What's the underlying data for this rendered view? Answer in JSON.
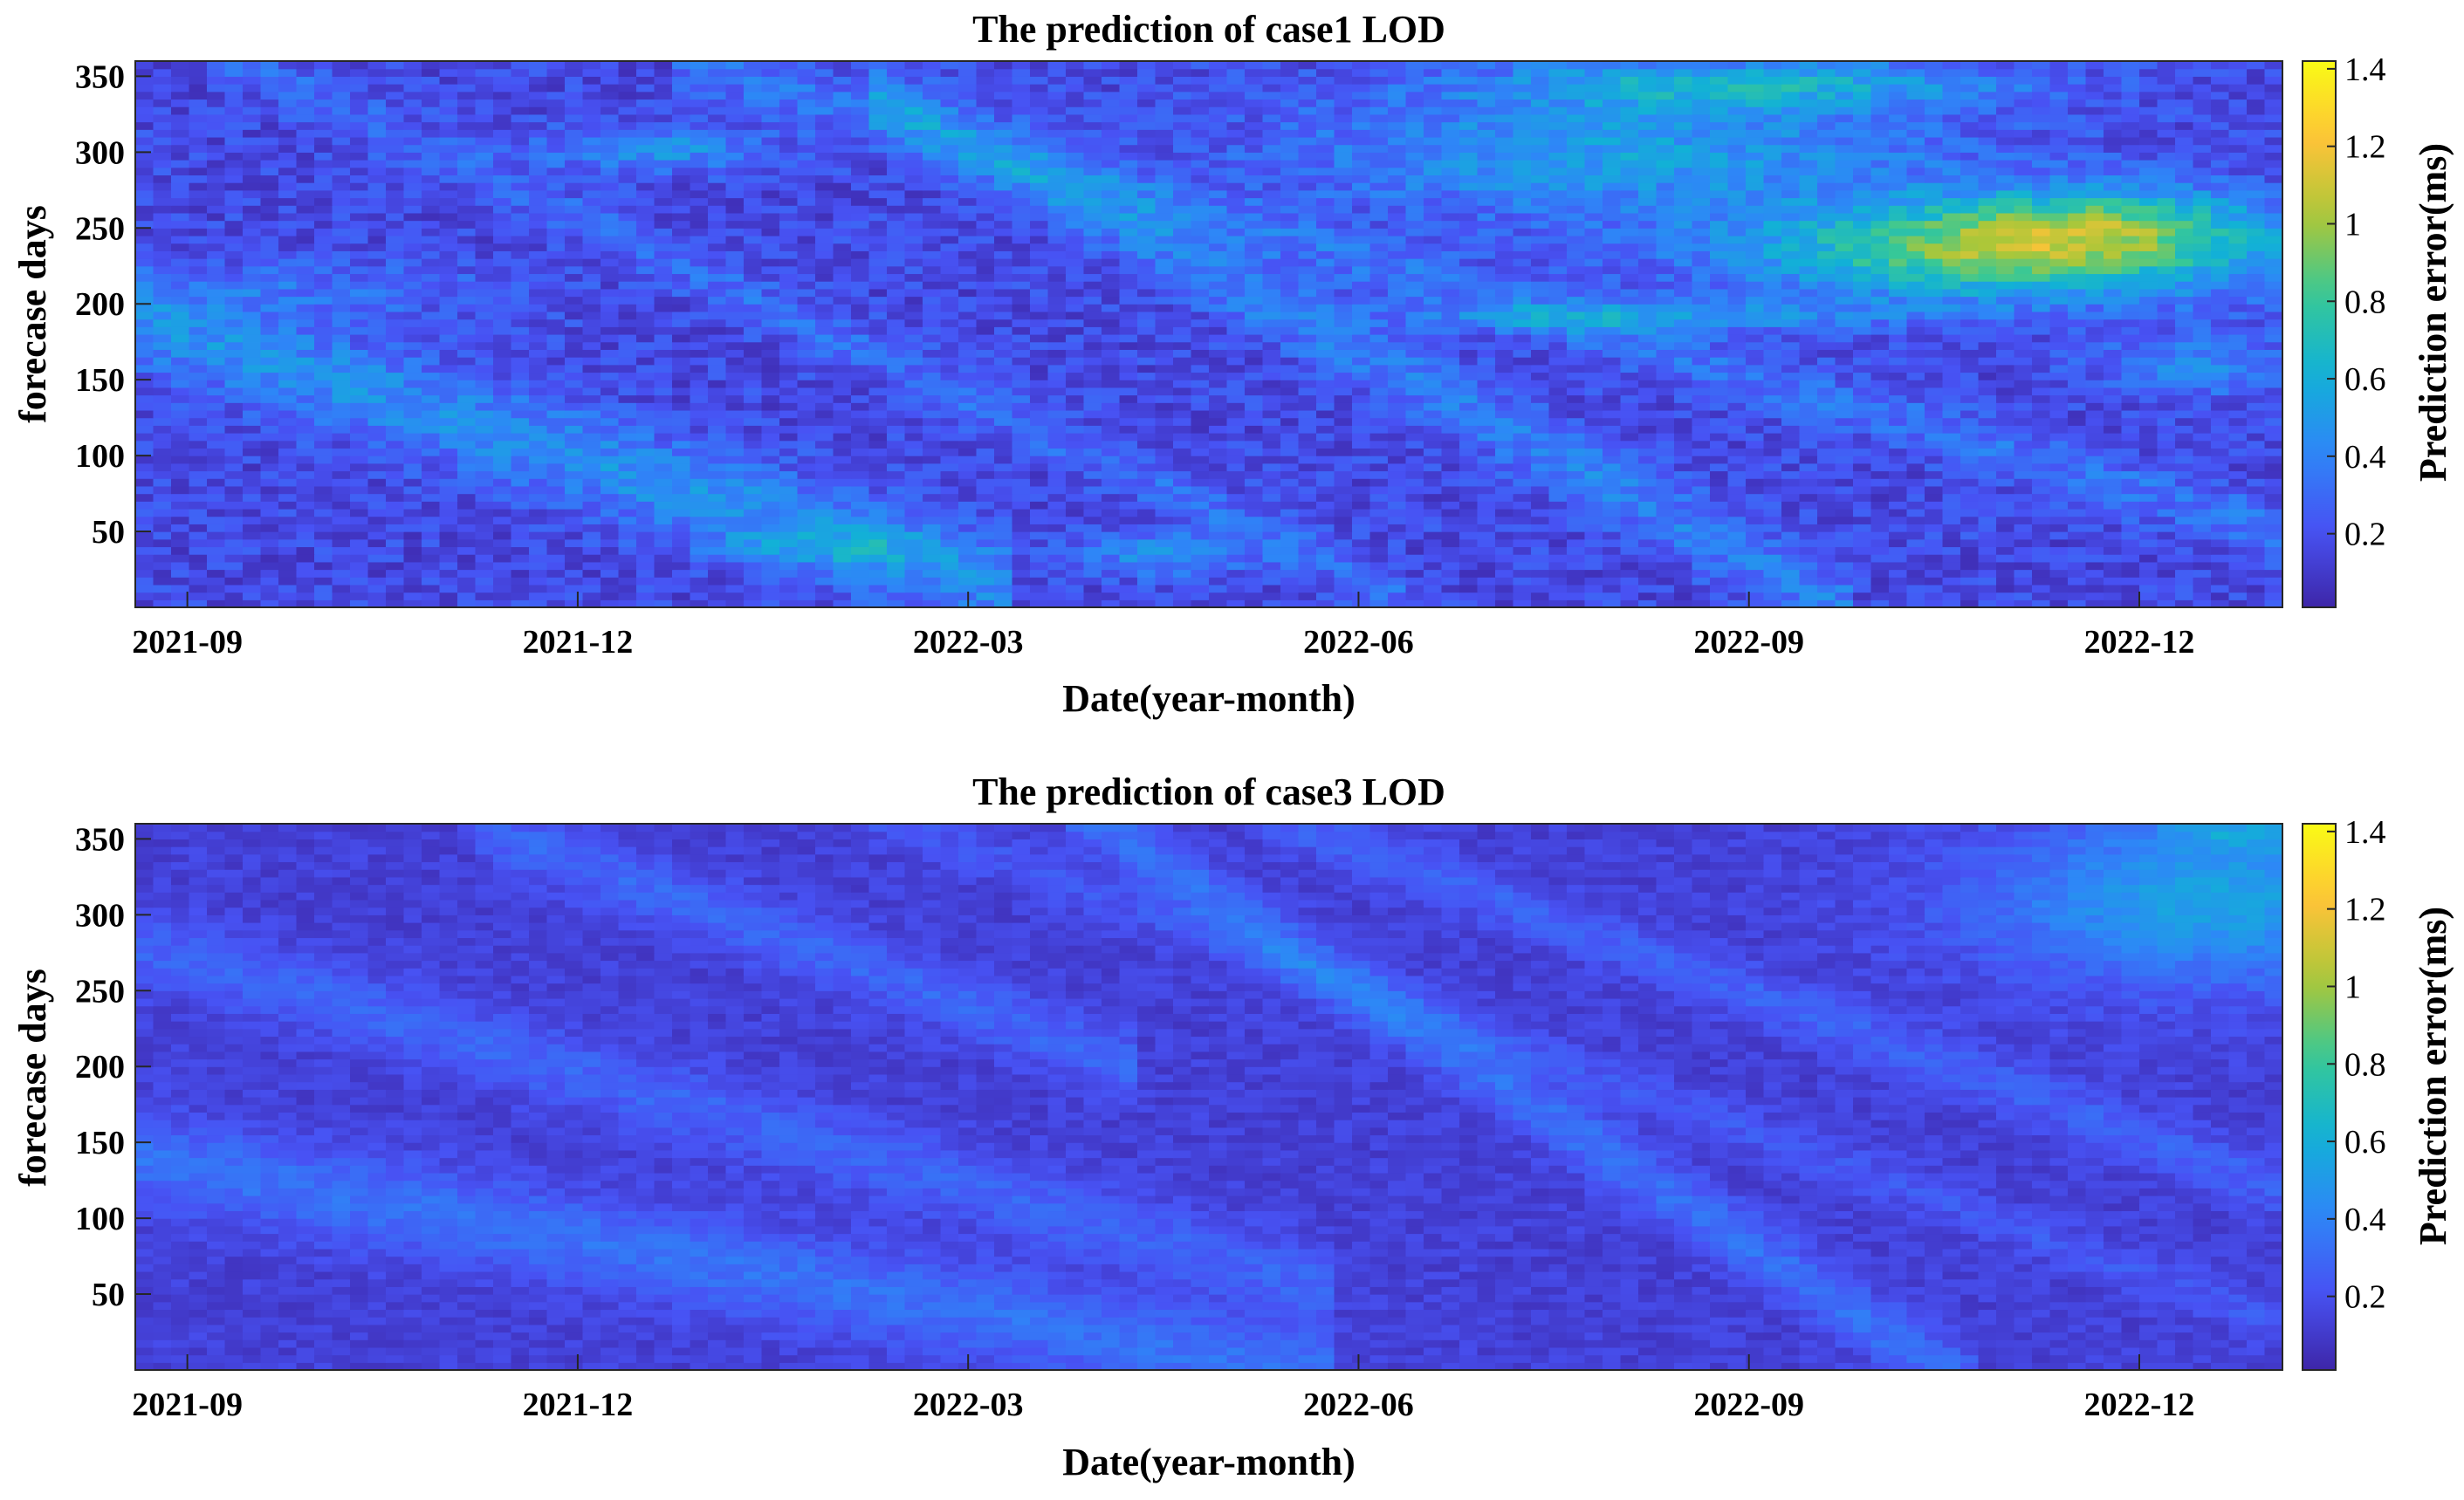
{
  "chart_data": [
    {
      "type": "heatmap",
      "title": "The prediction of case1 LOD",
      "xlabel": "Date(year-month)",
      "ylabel": "forecase days",
      "x_ticks": [
        "2021-09",
        "2021-12",
        "2022-03",
        "2022-06",
        "2022-09",
        "2022-12"
      ],
      "x_tick_months": [
        0,
        3,
        6,
        9,
        12,
        15
      ],
      "x_range_months": [
        -0.4,
        16.1
      ],
      "y_ticks": [
        50,
        100,
        150,
        200,
        250,
        300,
        350
      ],
      "ylim": [
        0,
        360
      ],
      "colorbar": {
        "label": "Prediction error(ms)",
        "ticks": [
          "0.2",
          "0.4",
          "0.6",
          "0.8",
          "1",
          "1.2",
          "1.4"
        ],
        "tick_values": [
          0.2,
          0.4,
          0.6,
          0.8,
          1.0,
          1.2,
          1.4
        ],
        "range": [
          0.01,
          1.42
        ],
        "colormap": "parula"
      },
      "field": {
        "base": 0.17,
        "noise": 0.12,
        "stripes": [
          {
            "x0": -0.4,
            "y0": 190,
            "x1": 6.0,
            "y1": 20,
            "amp": 0.28,
            "width": 32
          },
          {
            "x0": 5.5,
            "y0": 330,
            "x1": 12.5,
            "y1": 10,
            "amp": 0.22,
            "width": 25
          },
          {
            "x0": 0.5,
            "y0": 355,
            "x1": 9.0,
            "y1": 20,
            "amp": 0.14,
            "width": 18
          },
          {
            "x0": 4.0,
            "y0": 355,
            "x1": 16.1,
            "y1": 50,
            "amp": 0.16,
            "width": 20
          }
        ],
        "blobs": [
          {
            "x": 14.0,
            "y": 235,
            "rx": 2.0,
            "ry": 32,
            "amp": 0.75
          },
          {
            "x": 14.8,
            "y": 255,
            "rx": 1.2,
            "ry": 25,
            "amp": 0.35
          },
          {
            "x": 11.0,
            "y": 300,
            "rx": 2.5,
            "ry": 42,
            "amp": 0.35
          },
          {
            "x": 12.0,
            "y": 345,
            "rx": 2.0,
            "ry": 16,
            "amp": 0.4
          },
          {
            "x": 11.2,
            "y": 192,
            "rx": 1.8,
            "ry": 10,
            "amp": 0.3
          },
          {
            "x": 3.6,
            "y": 302,
            "rx": 0.9,
            "ry": 14,
            "amp": 0.3
          },
          {
            "x": 7.5,
            "y": 35,
            "rx": 0.6,
            "ry": 14,
            "amp": 0.3
          },
          {
            "x": 5.0,
            "y": 40,
            "rx": 1.0,
            "ry": 12,
            "amp": 0.2
          },
          {
            "x": 15.5,
            "y": 160,
            "rx": 0.8,
            "ry": 20,
            "amp": 0.25
          },
          {
            "x": 1.0,
            "y": 210,
            "rx": 1.4,
            "ry": 20,
            "amp": 0.15
          }
        ]
      }
    },
    {
      "type": "heatmap",
      "title": "The prediction of case3 LOD",
      "xlabel": "Date(year-month)",
      "ylabel": "forecase days",
      "x_ticks": [
        "2021-09",
        "2021-12",
        "2022-03",
        "2022-06",
        "2022-09",
        "2022-12"
      ],
      "x_tick_months": [
        0,
        3,
        6,
        9,
        12,
        15
      ],
      "x_range_months": [
        -0.4,
        16.1
      ],
      "y_ticks": [
        50,
        100,
        150,
        200,
        250,
        300,
        350
      ],
      "ylim": [
        0,
        360
      ],
      "colorbar": {
        "label": "Prediction error(ms)",
        "ticks": [
          "0.2",
          "0.4",
          "0.6",
          "0.8",
          "1",
          "1.2",
          "1.4"
        ],
        "tick_values": [
          0.2,
          0.4,
          0.6,
          0.8,
          1.0,
          1.2,
          1.4
        ],
        "range": [
          0.01,
          1.42
        ],
        "colormap": "parula"
      },
      "field": {
        "base": 0.13,
        "noise": 0.06,
        "stripes": [
          {
            "x0": -0.4,
            "y0": 140,
            "x1": 8.5,
            "y1": 0,
            "amp": 0.2,
            "width": 30
          },
          {
            "x0": -0.4,
            "y0": 280,
            "x1": 8.5,
            "y1": 60,
            "amp": 0.15,
            "width": 25
          },
          {
            "x0": 2.5,
            "y0": 350,
            "x1": 7.0,
            "y1": 210,
            "amp": 0.16,
            "width": 22
          },
          {
            "x0": 7.0,
            "y0": 360,
            "x1": 13.5,
            "y1": 0,
            "amp": 0.2,
            "width": 22
          },
          {
            "x0": 8.5,
            "y0": 360,
            "x1": 16.1,
            "y1": 120,
            "amp": 0.14,
            "width": 18
          },
          {
            "x0": 5.5,
            "y0": 360,
            "x1": 16.1,
            "y1": 30,
            "amp": 0.1,
            "width": 15
          }
        ],
        "blobs": [
          {
            "x": 15.6,
            "y": 310,
            "rx": 1.8,
            "ry": 55,
            "amp": 0.4
          },
          {
            "x": 15.8,
            "y": 355,
            "rx": 0.7,
            "ry": 12,
            "amp": 0.25
          }
        ]
      }
    }
  ]
}
